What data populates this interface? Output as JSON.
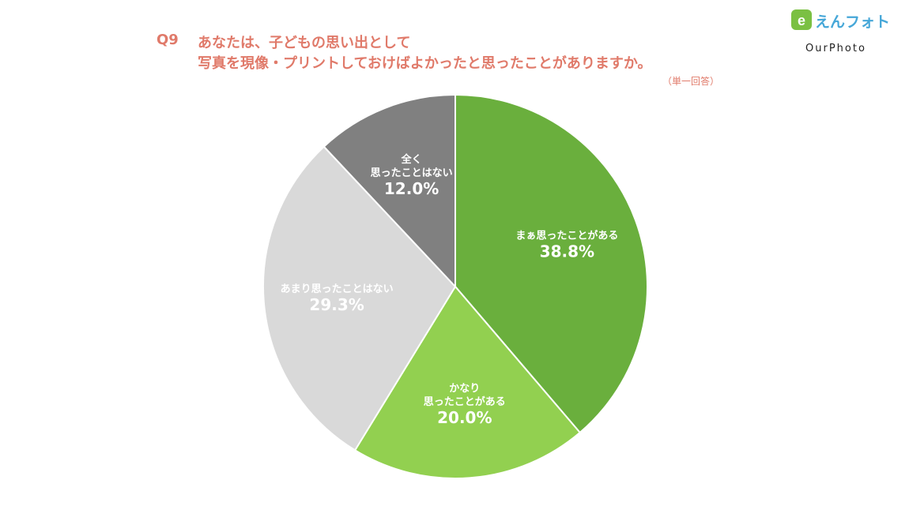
{
  "header": {
    "question_number": "Q9",
    "question_line1": "あなたは、子どもの思い出として",
    "question_line2": "写真を現像・プリントしておけばよかったと思ったことがありますか。",
    "note": "（単一回答）"
  },
  "logo": {
    "mark": "e",
    "name_jp": "えんフォト",
    "name_en": "OurPhoto"
  },
  "chart_data": {
    "type": "pie",
    "start": "top, clockwise",
    "slices": [
      {
        "label_lines": [
          "まぁ思ったことがある"
        ],
        "value": 38.8,
        "value_text": "38.8%",
        "color": "#6aaf3d",
        "text_color": "#ffffff"
      },
      {
        "label_lines": [
          "かなり",
          "思ったことがある"
        ],
        "value": 20.0,
        "value_text": "20.0%",
        "color": "#92d050",
        "text_color": "#ffffff"
      },
      {
        "label_lines": [
          "あまり思ったことはない"
        ],
        "value": 29.3,
        "value_text": "29.3%",
        "color": "#d9d9d9",
        "text_color": "#ffffff"
      },
      {
        "label_lines": [
          "全く",
          "思ったことはない"
        ],
        "value": 12.0,
        "value_text": "12.0%",
        "color": "#808080",
        "text_color": "#ffffff"
      }
    ]
  }
}
